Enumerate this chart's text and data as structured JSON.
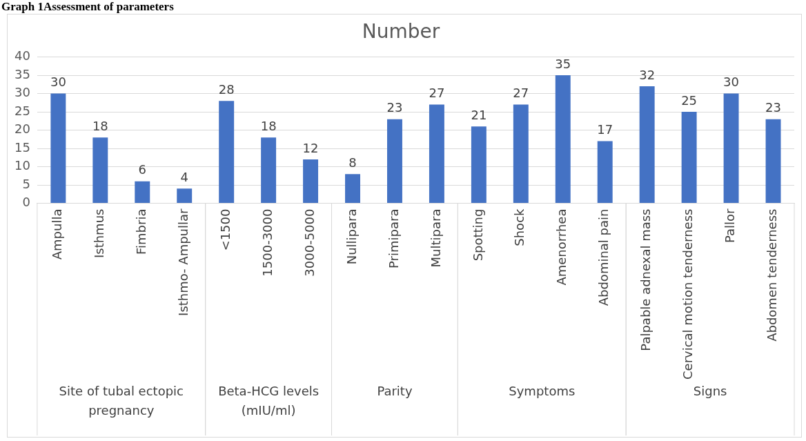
{
  "chart_data": {
    "type": "bar",
    "title": "Number",
    "categories": [
      "Ampulla",
      "Isthmus",
      "Fimbria",
      "Isthmo- Ampullar",
      "<1500",
      "1500-3000",
      "3000-5000",
      "Nullipara",
      "Primipara",
      "Multipara",
      "Spotting",
      "Shock",
      "Amenorrhea",
      "Abdominal pain",
      "Palpable adnexal mass",
      "Cervical motion tenderness",
      "Pallor",
      "Abdomen tenderness"
    ],
    "series": [
      {
        "color": "#4472c4",
        "values": [
          30,
          18,
          6,
          4,
          null,
          null,
          null,
          null,
          null,
          null,
          null,
          null,
          null,
          null,
          null,
          null,
          null,
          null
        ]
      },
      {
        "color": "#4472c4",
        "values": [
          null,
          null,
          null,
          null,
          28,
          18,
          12,
          null,
          null,
          null,
          null,
          null,
          null,
          null,
          null,
          null,
          null,
          null
        ]
      },
      {
        "color": "#4472c4",
        "values": [
          null,
          null,
          null,
          null,
          null,
          null,
          null,
          8,
          23,
          27,
          null,
          null,
          null,
          null,
          null,
          null,
          null,
          null
        ]
      },
      {
        "color": "#4472c4",
        "values": [
          null,
          null,
          null,
          null,
          null,
          null,
          null,
          null,
          null,
          null,
          21,
          27,
          35,
          17,
          null,
          null,
          null,
          null
        ]
      },
      {
        "color": "#4472c4",
        "values": [
          null,
          null,
          null,
          null,
          null,
          null,
          null,
          null,
          null,
          null,
          null,
          null,
          null,
          null,
          32,
          25,
          30,
          23
        ]
      }
    ],
    "ylim": [
      0,
      40
    ],
    "yticks": [
      0,
      5,
      10,
      15,
      20,
      25,
      30,
      35,
      40
    ],
    "grid": "y",
    "legend": false,
    "data_labels": true,
    "annotations": [
      "Graph 1Assessment of parameters",
      "Site of tubal ectopic pregnancy",
      "Beta-HCG levels (mIU/ml)",
      "Parity",
      "Symptoms",
      "Signs"
    ]
  }
}
